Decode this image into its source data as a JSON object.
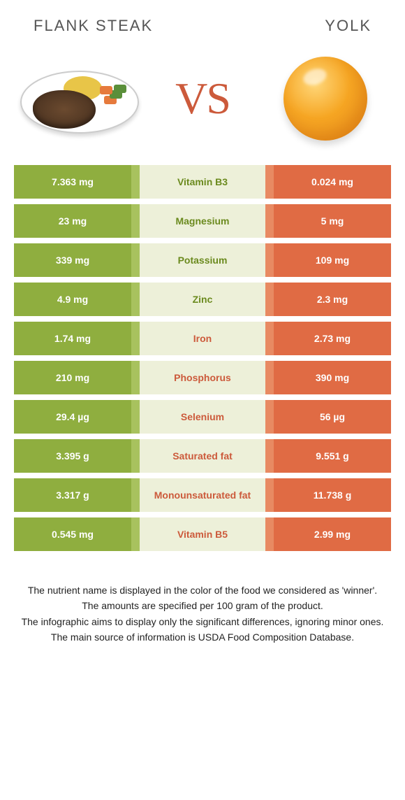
{
  "header": {
    "left": "FLANK STEAK",
    "right": "YOLK"
  },
  "vs_label": "VS",
  "colors": {
    "left_bg": "#8fae3f",
    "left_mid_bg": "#a8c25e",
    "mid_bg": "#edf0d9",
    "right_mid_bg": "#e88a62",
    "right_bg": "#e06b44",
    "left_text": "#6b8a1e",
    "right_text": "#cc5a3b",
    "header_text": "#555555",
    "footer_text": "#222222",
    "vs_text": "#cc5a3b"
  },
  "rows": [
    {
      "left": "7.363 mg",
      "label": "Vitamin B3",
      "right": "0.024 mg",
      "winner": "left"
    },
    {
      "left": "23 mg",
      "label": "Magnesium",
      "right": "5 mg",
      "winner": "left"
    },
    {
      "left": "339 mg",
      "label": "Potassium",
      "right": "109 mg",
      "winner": "left"
    },
    {
      "left": "4.9 mg",
      "label": "Zinc",
      "right": "2.3 mg",
      "winner": "left"
    },
    {
      "left": "1.74 mg",
      "label": "Iron",
      "right": "2.73 mg",
      "winner": "right"
    },
    {
      "left": "210 mg",
      "label": "Phosphorus",
      "right": "390 mg",
      "winner": "right"
    },
    {
      "left": "29.4 µg",
      "label": "Selenium",
      "right": "56 µg",
      "winner": "right"
    },
    {
      "left": "3.395 g",
      "label": "Saturated fat",
      "right": "9.551 g",
      "winner": "right"
    },
    {
      "left": "3.317 g",
      "label": "Monounsaturated fat",
      "right": "11.738 g",
      "winner": "right"
    },
    {
      "left": "0.545 mg",
      "label": "Vitamin B5",
      "right": "2.99 mg",
      "winner": "right"
    }
  ],
  "footer": [
    "The nutrient name is displayed in the color of the food we considered as 'winner'.",
    "The amounts are specified per 100 gram of the product.",
    "The infographic aims to display only the significant differences, ignoring minor ones.",
    "The main source of information is USDA Food Composition Database."
  ]
}
